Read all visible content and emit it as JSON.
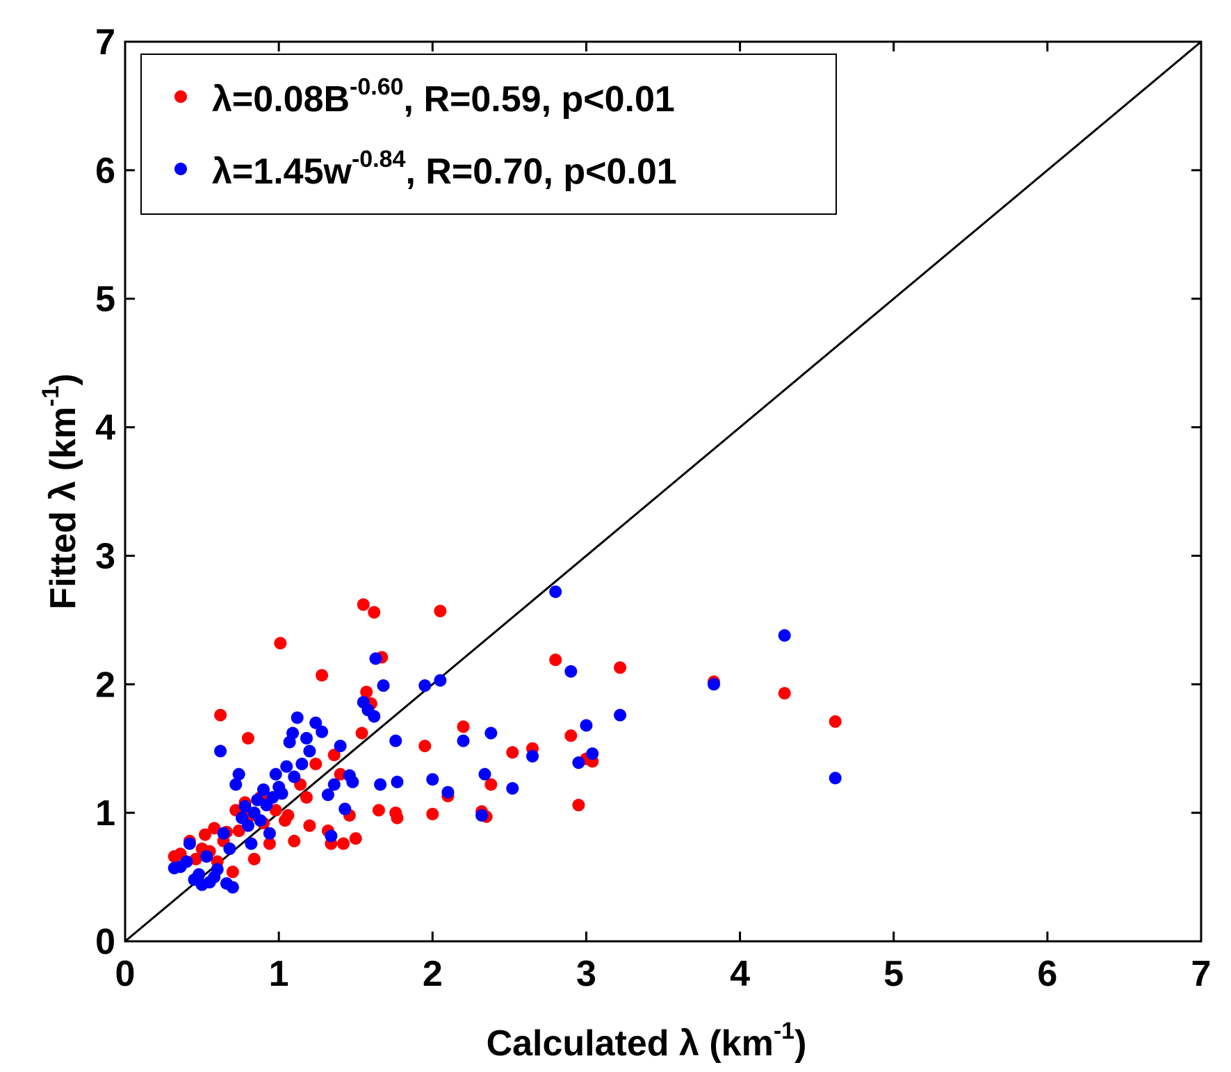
{
  "chart_data": {
    "type": "scatter",
    "title": "",
    "xlabel": {
      "prefix": "Calculated λ (km",
      "sup": "-1",
      "suffix": ")"
    },
    "ylabel": {
      "prefix": "Fitted λ (km",
      "sup": "-1",
      "suffix": ")"
    },
    "xlim": [
      0,
      7
    ],
    "ylim": [
      0,
      7
    ],
    "xticks": [
      "0",
      "1",
      "2",
      "3",
      "4",
      "5",
      "6",
      "7"
    ],
    "yticks": [
      "0",
      "1",
      "2",
      "3",
      "4",
      "5",
      "6",
      "7"
    ],
    "reference_line": {
      "label": "1:1 line",
      "from": [
        0,
        0
      ],
      "to": [
        7,
        7
      ],
      "color": "#000000"
    },
    "legend": {
      "position": "top-left"
    },
    "series": [
      {
        "name": "lambda-B",
        "color": "#ff0000",
        "legend": {
          "pre": "λ=0.08B",
          "sup": "-0.60",
          "post": ", R=0.59, p<0.01"
        },
        "points": [
          [
            0.32,
            0.66
          ],
          [
            0.36,
            0.68
          ],
          [
            0.42,
            0.78
          ],
          [
            0.46,
            0.64
          ],
          [
            0.5,
            0.72
          ],
          [
            0.52,
            0.83
          ],
          [
            0.55,
            0.7
          ],
          [
            0.58,
            0.88
          ],
          [
            0.6,
            0.62
          ],
          [
            0.62,
            1.76
          ],
          [
            0.64,
            0.78
          ],
          [
            0.66,
            0.85
          ],
          [
            0.7,
            0.54
          ],
          [
            0.72,
            1.02
          ],
          [
            0.74,
            0.86
          ],
          [
            0.78,
            1.08
          ],
          [
            0.8,
            1.58
          ],
          [
            0.82,
            0.98
          ],
          [
            0.84,
            0.64
          ],
          [
            0.88,
            1.12
          ],
          [
            0.9,
            0.92
          ],
          [
            0.94,
            0.76
          ],
          [
            0.98,
            1.02
          ],
          [
            1.01,
            2.32
          ],
          [
            1.04,
            0.94
          ],
          [
            1.06,
            0.98
          ],
          [
            1.1,
            0.78
          ],
          [
            1.14,
            1.22
          ],
          [
            1.18,
            1.12
          ],
          [
            1.2,
            0.9
          ],
          [
            1.24,
            1.38
          ],
          [
            1.28,
            2.07
          ],
          [
            1.32,
            0.86
          ],
          [
            1.34,
            0.76
          ],
          [
            1.36,
            1.45
          ],
          [
            1.4,
            1.3
          ],
          [
            1.42,
            0.76
          ],
          [
            1.46,
            0.98
          ],
          [
            1.5,
            0.8
          ],
          [
            1.54,
            1.62
          ],
          [
            1.55,
            2.62
          ],
          [
            1.57,
            1.94
          ],
          [
            1.6,
            1.85
          ],
          [
            1.62,
            2.56
          ],
          [
            1.65,
            1.02
          ],
          [
            1.67,
            2.21
          ],
          [
            1.76,
            1.0
          ],
          [
            1.77,
            0.96
          ],
          [
            1.95,
            1.52
          ],
          [
            2.0,
            0.99
          ],
          [
            2.05,
            2.57
          ],
          [
            2.1,
            1.13
          ],
          [
            2.2,
            1.67
          ],
          [
            2.32,
            1.01
          ],
          [
            2.35,
            0.97
          ],
          [
            2.38,
            1.22
          ],
          [
            2.52,
            1.47
          ],
          [
            2.65,
            1.5
          ],
          [
            2.8,
            2.19
          ],
          [
            2.9,
            1.6
          ],
          [
            2.95,
            1.06
          ],
          [
            3.0,
            1.42
          ],
          [
            3.04,
            1.4
          ],
          [
            3.22,
            2.13
          ],
          [
            3.83,
            2.02
          ],
          [
            4.29,
            1.93
          ],
          [
            4.62,
            1.71
          ]
        ]
      },
      {
        "name": "lambda-w",
        "color": "#0000ff",
        "legend": {
          "pre": "λ=1.45w",
          "sup": "-0.84",
          "post": ", R=0.70, p<0.01"
        },
        "points": [
          [
            0.32,
            0.57
          ],
          [
            0.36,
            0.58
          ],
          [
            0.4,
            0.62
          ],
          [
            0.42,
            0.76
          ],
          [
            0.45,
            0.48
          ],
          [
            0.48,
            0.52
          ],
          [
            0.5,
            0.44
          ],
          [
            0.53,
            0.66
          ],
          [
            0.55,
            0.46
          ],
          [
            0.58,
            0.5
          ],
          [
            0.6,
            0.56
          ],
          [
            0.62,
            1.48
          ],
          [
            0.64,
            0.84
          ],
          [
            0.66,
            0.45
          ],
          [
            0.68,
            0.72
          ],
          [
            0.7,
            0.42
          ],
          [
            0.72,
            1.22
          ],
          [
            0.74,
            1.3
          ],
          [
            0.76,
            0.96
          ],
          [
            0.78,
            1.05
          ],
          [
            0.8,
            0.9
          ],
          [
            0.82,
            0.76
          ],
          [
            0.84,
            1.0
          ],
          [
            0.86,
            1.1
          ],
          [
            0.88,
            0.94
          ],
          [
            0.9,
            1.18
          ],
          [
            0.92,
            1.06
          ],
          [
            0.94,
            0.84
          ],
          [
            0.96,
            1.12
          ],
          [
            0.98,
            1.3
          ],
          [
            1.0,
            1.2
          ],
          [
            1.02,
            1.15
          ],
          [
            1.05,
            1.36
          ],
          [
            1.07,
            1.55
          ],
          [
            1.09,
            1.62
          ],
          [
            1.1,
            1.28
          ],
          [
            1.12,
            1.74
          ],
          [
            1.15,
            1.38
          ],
          [
            1.18,
            1.58
          ],
          [
            1.2,
            1.48
          ],
          [
            1.24,
            1.7
          ],
          [
            1.28,
            1.63
          ],
          [
            1.32,
            1.14
          ],
          [
            1.34,
            0.82
          ],
          [
            1.36,
            1.22
          ],
          [
            1.4,
            1.52
          ],
          [
            1.43,
            1.03
          ],
          [
            1.46,
            1.29
          ],
          [
            1.48,
            1.24
          ],
          [
            1.55,
            1.86
          ],
          [
            1.58,
            1.8
          ],
          [
            1.62,
            1.75
          ],
          [
            1.63,
            2.2
          ],
          [
            1.66,
            1.22
          ],
          [
            1.68,
            1.99
          ],
          [
            1.76,
            1.56
          ],
          [
            1.77,
            1.24
          ],
          [
            1.95,
            1.99
          ],
          [
            2.0,
            1.26
          ],
          [
            2.05,
            2.03
          ],
          [
            2.1,
            1.16
          ],
          [
            2.2,
            1.56
          ],
          [
            2.32,
            0.98
          ],
          [
            2.34,
            1.3
          ],
          [
            2.38,
            1.62
          ],
          [
            2.52,
            1.19
          ],
          [
            2.65,
            1.44
          ],
          [
            2.8,
            2.72
          ],
          [
            2.9,
            2.1
          ],
          [
            2.95,
            1.39
          ],
          [
            3.0,
            1.68
          ],
          [
            3.04,
            1.46
          ],
          [
            3.22,
            1.76
          ],
          [
            3.83,
            2.0
          ],
          [
            4.29,
            2.38
          ],
          [
            4.62,
            1.27
          ]
        ]
      }
    ]
  }
}
